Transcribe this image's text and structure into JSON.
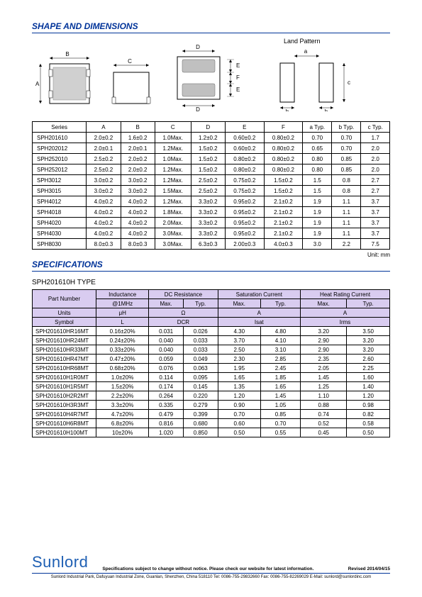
{
  "headings": {
    "shape": "SHAPE AND DIMENSIONS",
    "specs": "SPECIFICATIONS",
    "type": "SPH201610H TYPE"
  },
  "diagram_labels": {
    "land_pattern": "Land Pattern",
    "unit": "Unit: mm",
    "A": "A",
    "B": "B",
    "C": "C",
    "D": "D",
    "E": "E",
    "F": "F",
    "a": "a",
    "b": "b",
    "c": "c"
  },
  "dim_table": {
    "headers": [
      "Series",
      "A",
      "B",
      "C",
      "D",
      "E",
      "F",
      "a Typ.",
      "b Typ.",
      "c Typ."
    ],
    "rows": [
      [
        "SPH201610",
        "2.0±0.2",
        "1.6±0.2",
        "1.0Max.",
        "1.2±0.2",
        "0.60±0.2",
        "0.80±0.2",
        "0.70",
        "0.70",
        "1.7"
      ],
      [
        "SPH202012",
        "2.0±0.1",
        "2.0±0.1",
        "1.2Max.",
        "1.5±0.2",
        "0.60±0.2",
        "0.80±0.2",
        "0.65",
        "0.70",
        "2.0"
      ],
      [
        "SPH252010",
        "2.5±0.2",
        "2.0±0.2",
        "1.0Max.",
        "1.5±0.2",
        "0.80±0.2",
        "0.80±0.2",
        "0.80",
        "0.85",
        "2.0"
      ],
      [
        "SPH252012",
        "2.5±0.2",
        "2.0±0.2",
        "1.2Max.",
        "1.5±0.2",
        "0.80±0.2",
        "0.80±0.2",
        "0.80",
        "0.85",
        "2.0"
      ],
      [
        "SPH3012",
        "3.0±0.2",
        "3.0±0.2",
        "1.2Max.",
        "2.5±0.2",
        "0.75±0.2",
        "1.5±0.2",
        "1.5",
        "0.8",
        "2.7"
      ],
      [
        "SPH3015",
        "3.0±0.2",
        "3.0±0.2",
        "1.5Max.",
        "2.5±0.2",
        "0.75±0.2",
        "1.5±0.2",
        "1.5",
        "0.8",
        "2.7"
      ],
      [
        "SPH4012",
        "4.0±0.2",
        "4.0±0.2",
        "1.2Max.",
        "3.3±0.2",
        "0.95±0.2",
        "2.1±0.2",
        "1.9",
        "1.1",
        "3.7"
      ],
      [
        "SPH4018",
        "4.0±0.2",
        "4.0±0.2",
        "1.8Max.",
        "3.3±0.2",
        "0.95±0.2",
        "2.1±0.2",
        "1.9",
        "1.1",
        "3.7"
      ],
      [
        "SPH4020",
        "4.0±0.2",
        "4.0±0.2",
        "2.0Max.",
        "3.3±0.2",
        "0.95±0.2",
        "2.1±0.2",
        "1.9",
        "1.1",
        "3.7"
      ],
      [
        "SPH4030",
        "4.0±0.2",
        "4.0±0.2",
        "3.0Max.",
        "3.3±0.2",
        "0.95±0.2",
        "2.1±0.2",
        "1.9",
        "1.1",
        "3.7"
      ],
      [
        "SPH8030",
        "8.0±0.3",
        "8.0±0.3",
        "3.0Max.",
        "6.3±0.3",
        "2.00±0.3",
        "4.0±0.3",
        "3.0",
        "2.2",
        "7.5"
      ]
    ]
  },
  "spec_table": {
    "header1": [
      "Part Number",
      "Inductance",
      "DC Resistance",
      "Saturation Current",
      "Heat Rating Current"
    ],
    "header2": [
      "@1MHz",
      "Max.",
      "Typ.",
      "Max.",
      "Typ.",
      "Max.",
      "Typ."
    ],
    "units_row": [
      "Units",
      "μH",
      "Ω",
      "A",
      "A"
    ],
    "symbol_row": [
      "Symbol",
      "L",
      "DCR",
      "Isat",
      "Irms"
    ],
    "rows": [
      [
        "SPH201610HR16MT",
        "0.16±20%",
        "0.031",
        "0.026",
        "4.30",
        "4.80",
        "3.20",
        "3.50"
      ],
      [
        "SPH201610HR24MT",
        "0.24±20%",
        "0.040",
        "0.033",
        "3.70",
        "4.10",
        "2.90",
        "3.20"
      ],
      [
        "SPH201610HR33MT",
        "0.33±20%",
        "0.040",
        "0.033",
        "2.50",
        "3.10",
        "2.90",
        "3.20"
      ],
      [
        "SPH201610HR47MT",
        "0.47±20%",
        "0.059",
        "0.049",
        "2.30",
        "2.85",
        "2.35",
        "2.60"
      ],
      [
        "SPH201610HR68MT",
        "0.68±20%",
        "0.076",
        "0.063",
        "1.95",
        "2.45",
        "2.05",
        "2.25"
      ],
      [
        "SPH201610H1R0MT",
        "1.0±20%",
        "0.114",
        "0.095",
        "1.65",
        "1.85",
        "1.45",
        "1.60"
      ],
      [
        "SPH201610H1R5MT",
        "1.5±20%",
        "0.174",
        "0.145",
        "1.35",
        "1.65",
        "1.25",
        "1.40"
      ],
      [
        "SPH201610H2R2MT",
        "2.2±20%",
        "0.264",
        "0.220",
        "1.20",
        "1.45",
        "1.10",
        "1.20"
      ],
      [
        "SPH201610H3R3MT",
        "3.3±20%",
        "0.335",
        "0.279",
        "0.90",
        "1.05",
        "0.88",
        "0.98"
      ],
      [
        "SPH201610H4R7MT",
        "4.7±20%",
        "0.479",
        "0.399",
        "0.70",
        "0.85",
        "0.74",
        "0.82"
      ],
      [
        "SPH201610H6R8MT",
        "6.8±20%",
        "0.816",
        "0.680",
        "0.60",
        "0.70",
        "0.52",
        "0.58"
      ],
      [
        "SPH201610H100MT",
        "10±20%",
        "1.020",
        "0.850",
        "0.50",
        "0.55",
        "0.45",
        "0.50"
      ]
    ]
  },
  "footer": {
    "logo": "Sunlord",
    "note": "Specifications subject to change without notice. Please check our website for latest information.",
    "revised": "Revised 2014/04/15",
    "addr": "Sunlord Industrial Park, Dafuyuan Industrial Zone, Guanlan, Shenzhen, China 518110 Tel: 0086-755-29832660 Fax: 0086-755-82269029 E-Mail: sunlord@sunlordinc.com"
  }
}
